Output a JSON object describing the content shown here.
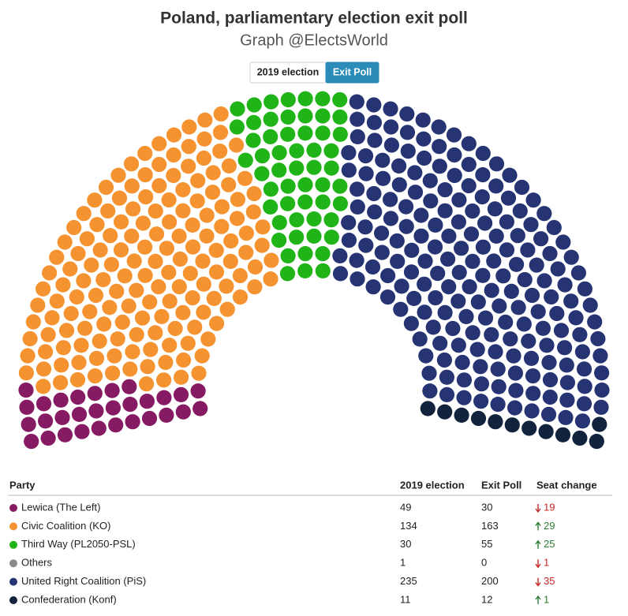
{
  "chart_data": {
    "type": "parliament",
    "title": "Poland, parliamentary election exit poll",
    "subtitle": "Graph @ElectsWorld",
    "buttons": [
      "2019 election",
      "Exit Poll"
    ],
    "active_button": 1,
    "columns": [
      "Party",
      "2019 election",
      "Exit Poll",
      "Seat change"
    ],
    "series": [
      {
        "name": "Lewica (The Left)",
        "color": "#861a63",
        "values": [
          49,
          30
        ],
        "seat_change": 19,
        "direction": "down"
      },
      {
        "name": "Civic Coalition (KO)",
        "color": "#f59331",
        "values": [
          134,
          163
        ],
        "seat_change": 29,
        "direction": "up"
      },
      {
        "name": "Third Way (PL2050-PSL)",
        "color": "#21b418",
        "values": [
          30,
          55
        ],
        "seat_change": 25,
        "direction": "up"
      },
      {
        "name": "Others",
        "color": "#8a8a8a",
        "values": [
          1,
          0
        ],
        "seat_change": 1,
        "direction": "down"
      },
      {
        "name": "United Right Coalition (PiS)",
        "color": "#263474",
        "values": [
          235,
          200
        ],
        "seat_change": 35,
        "direction": "down"
      },
      {
        "name": "Confederation (Konf)",
        "color": "#12233d",
        "values": [
          11,
          12
        ],
        "seat_change": 1,
        "direction": "up"
      }
    ]
  }
}
